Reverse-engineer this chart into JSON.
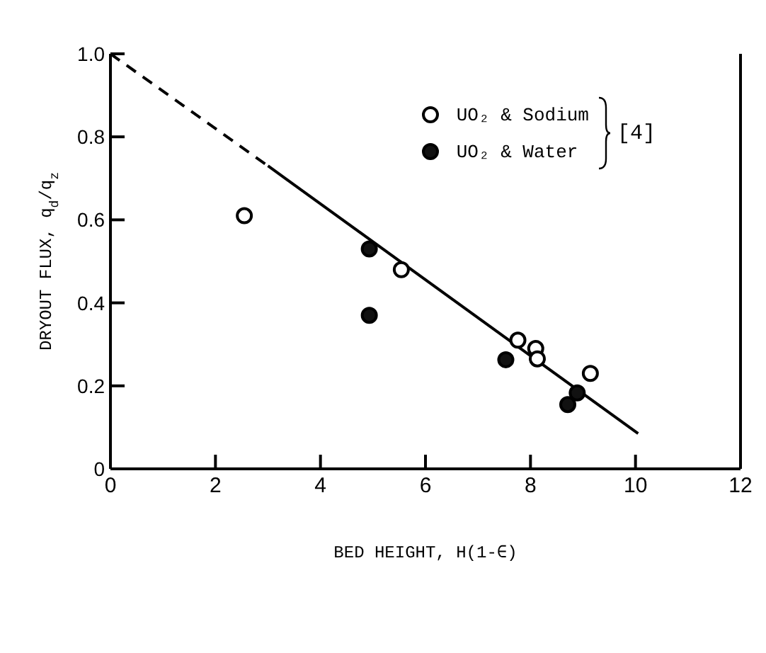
{
  "chart_data": {
    "type": "scatter",
    "xlabel": "BED HEIGHT, H(1-∈)",
    "ylabel": "DRYOUT FLUX, q$_{d}$/q$_{z}$",
    "xlim": [
      0,
      12
    ],
    "xticks": [
      0,
      2,
      4,
      6,
      8,
      10,
      12
    ],
    "ylim": [
      0,
      1.0
    ],
    "yticks": [
      0,
      0.2,
      0.4,
      0.6,
      0.8,
      {
        "value": 1.0,
        "label": "1.0"
      }
    ],
    "legend": "top right",
    "annotations": [
      "[4]"
    ],
    "series": [
      {
        "name": "UO₂ & Sodium",
        "marker": "circle",
        "color": "#ffffff",
        "x": [
          2.55,
          5.54,
          7.76,
          8.1,
          8.13,
          9.14
        ],
        "values": [
          0.61,
          0.48,
          0.31,
          0.29,
          0.265,
          0.23
        ]
      },
      {
        "name": "UO₂ & Water",
        "marker": "circle",
        "color": "#111111",
        "x": [
          4.93,
          4.93,
          7.53,
          8.71,
          8.89
        ],
        "values": [
          0.53,
          0.37,
          0.263,
          0.155,
          0.183
        ]
      },
      {
        "type": "line",
        "color": "#000000",
        "line_style": "dashed",
        "x": [
          0,
          3
        ],
        "values": [
          1.0,
          0.73
        ]
      },
      {
        "type": "line",
        "color": "#000000",
        "line_style": "solid",
        "x": [
          3,
          10.05
        ],
        "values": [
          0.73,
          0.085
        ]
      }
    ]
  }
}
